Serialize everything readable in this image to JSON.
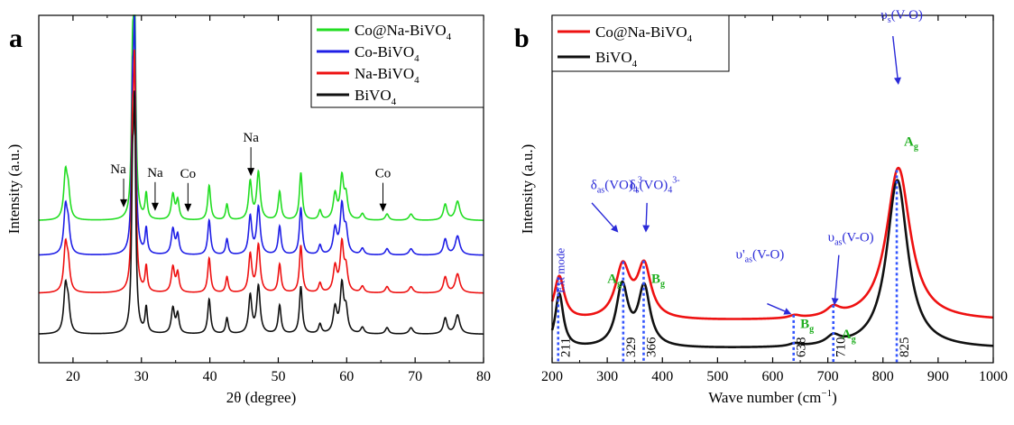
{
  "colors": {
    "green": "#22dd22",
    "blue": "#1f1fe6",
    "red": "#ee1111",
    "black": "#111111",
    "annot_blue": "#2a2ad8",
    "annot_green": "#1fae1f",
    "dotted": "#3355ff"
  },
  "chart_data": [
    {
      "type": "line",
      "panel_label": "a",
      "xlabel": "2θ (degree)",
      "ylabel": "Intensity (a.u.)",
      "xlim": [
        15,
        80
      ],
      "ylim": [
        0,
        11
      ],
      "xticks": [
        20,
        30,
        40,
        50,
        60,
        70,
        80
      ],
      "x_minor_step": 5,
      "grid": false,
      "legend": {
        "placement": "top-right",
        "entries": [
          "Co@Na-BiVO",
          "Co-BiVO",
          "Na-BiVO",
          "BiVO"
        ],
        "subscript": "4"
      },
      "series": [
        {
          "name": "Co@Na-BiVO",
          "legend_sub": "4",
          "color_key": "green",
          "baseline": 4.5,
          "peaks": [
            [
              18.9,
              1.4,
              0.3
            ],
            [
              19.3,
              0.8,
              0.3
            ],
            [
              28.7,
              4.0,
              0.18
            ],
            [
              29.0,
              6.7,
              0.2
            ],
            [
              30.7,
              0.8,
              0.2
            ],
            [
              34.6,
              0.8,
              0.28
            ],
            [
              35.3,
              0.6,
              0.25
            ],
            [
              39.9,
              1.1,
              0.25
            ],
            [
              42.5,
              0.5,
              0.22
            ],
            [
              45.9,
              1.2,
              0.28
            ],
            [
              47.1,
              1.5,
              0.3
            ],
            [
              50.2,
              0.9,
              0.25
            ],
            [
              53.3,
              1.5,
              0.25
            ],
            [
              56.1,
              0.3,
              0.25
            ],
            [
              58.3,
              0.8,
              0.32
            ],
            [
              59.3,
              1.3,
              0.3
            ],
            [
              59.9,
              0.7,
              0.3
            ],
            [
              62.3,
              0.2,
              0.3
            ],
            [
              65.9,
              0.2,
              0.3
            ],
            [
              69.4,
              0.2,
              0.35
            ],
            [
              74.4,
              0.5,
              0.32
            ],
            [
              76.2,
              0.6,
              0.4
            ]
          ],
          "data_labels": [
            {
              "text": "Na",
              "x": 27.4
            },
            {
              "text": "Na",
              "x": 32.0
            },
            {
              "text": "Co",
              "x": 36.8
            },
            {
              "text": "Na",
              "x": 46.0
            },
            {
              "text": "Co",
              "x": 65.3
            }
          ]
        },
        {
          "name": "Co-BiVO",
          "legend_sub": "4",
          "color_key": "blue",
          "baseline": 3.4,
          "peaks": [
            [
              18.9,
              1.4,
              0.3
            ],
            [
              19.3,
              0.8,
              0.3
            ],
            [
              28.7,
              4.0,
              0.18
            ],
            [
              29.0,
              6.6,
              0.2
            ],
            [
              30.7,
              0.8,
              0.2
            ],
            [
              34.6,
              0.8,
              0.28
            ],
            [
              35.3,
              0.6,
              0.25
            ],
            [
              39.9,
              1.1,
              0.25
            ],
            [
              42.5,
              0.5,
              0.22
            ],
            [
              45.9,
              1.2,
              0.28
            ],
            [
              47.1,
              1.5,
              0.3
            ],
            [
              50.2,
              0.9,
              0.25
            ],
            [
              53.3,
              1.5,
              0.25
            ],
            [
              56.1,
              0.3,
              0.25
            ],
            [
              58.3,
              0.8,
              0.32
            ],
            [
              59.3,
              1.5,
              0.3
            ],
            [
              59.9,
              0.7,
              0.3
            ],
            [
              62.3,
              0.2,
              0.3
            ],
            [
              65.9,
              0.2,
              0.3
            ],
            [
              69.4,
              0.2,
              0.35
            ],
            [
              74.4,
              0.5,
              0.32
            ],
            [
              76.2,
              0.6,
              0.4
            ]
          ]
        },
        {
          "name": "Na-BiVO",
          "legend_sub": "4",
          "color_key": "red",
          "baseline": 2.2,
          "peaks": [
            [
              18.9,
              1.4,
              0.3
            ],
            [
              19.3,
              0.8,
              0.3
            ],
            [
              28.7,
              4.0,
              0.18
            ],
            [
              29.0,
              6.6,
              0.2
            ],
            [
              30.7,
              0.8,
              0.2
            ],
            [
              34.6,
              0.8,
              0.28
            ],
            [
              35.3,
              0.6,
              0.25
            ],
            [
              39.9,
              1.1,
              0.25
            ],
            [
              42.5,
              0.5,
              0.22
            ],
            [
              45.9,
              1.2,
              0.28
            ],
            [
              47.1,
              1.5,
              0.3
            ],
            [
              50.2,
              0.9,
              0.25
            ],
            [
              53.3,
              1.5,
              0.25
            ],
            [
              56.1,
              0.3,
              0.25
            ],
            [
              58.3,
              0.8,
              0.32
            ],
            [
              59.3,
              1.5,
              0.3
            ],
            [
              59.9,
              0.7,
              0.3
            ],
            [
              62.3,
              0.2,
              0.3
            ],
            [
              65.9,
              0.2,
              0.3
            ],
            [
              69.4,
              0.2,
              0.35
            ],
            [
              74.4,
              0.5,
              0.32
            ],
            [
              76.2,
              0.6,
              0.4
            ]
          ]
        },
        {
          "name": "BiVO",
          "legend_sub": "4",
          "color_key": "black",
          "baseline": 0.9,
          "peaks": [
            [
              18.9,
              1.4,
              0.3
            ],
            [
              19.3,
              0.8,
              0.3
            ],
            [
              28.7,
              4.0,
              0.18
            ],
            [
              29.0,
              6.6,
              0.2
            ],
            [
              30.7,
              0.8,
              0.2
            ],
            [
              34.6,
              0.8,
              0.28
            ],
            [
              35.3,
              0.6,
              0.25
            ],
            [
              39.9,
              1.1,
              0.25
            ],
            [
              42.5,
              0.5,
              0.22
            ],
            [
              45.9,
              1.2,
              0.28
            ],
            [
              47.1,
              1.5,
              0.3
            ],
            [
              50.2,
              0.9,
              0.25
            ],
            [
              53.3,
              1.5,
              0.25
            ],
            [
              56.1,
              0.3,
              0.25
            ],
            [
              58.3,
              0.8,
              0.32
            ],
            [
              59.3,
              1.5,
              0.3
            ],
            [
              59.9,
              0.7,
              0.3
            ],
            [
              62.3,
              0.2,
              0.3
            ],
            [
              65.9,
              0.2,
              0.3
            ],
            [
              69.4,
              0.2,
              0.35
            ],
            [
              74.4,
              0.5,
              0.32
            ],
            [
              76.2,
              0.6,
              0.4
            ]
          ]
        }
      ]
    },
    {
      "type": "line",
      "panel_label": "b",
      "xlabel": "Wave number (cm",
      "xlabel_sup": "−1",
      "xlabel_end": ")",
      "ylabel": "Intensity (a.u.)",
      "xlim": [
        200,
        1000
      ],
      "ylim": [
        0,
        10
      ],
      "xticks": [
        200,
        300,
        400,
        500,
        600,
        700,
        800,
        900,
        1000
      ],
      "x_minor_step": 50,
      "grid": false,
      "legend": {
        "placement": "top-left",
        "entries": [
          "Co@Na-BiVO",
          "BiVO"
        ],
        "subscript": "4"
      },
      "series": [
        {
          "name": "Co@Na-BiVO",
          "legend_sub": "4",
          "color_key": "red",
          "baseline": 1.2,
          "peaks": [
            [
              213,
              1.25,
              11
            ],
            [
              328,
              1.5,
              16
            ],
            [
              367,
              1.5,
              15
            ],
            [
              640,
              0.08,
              12
            ],
            [
              710,
              0.25,
              15
            ],
            [
              828,
              4.4,
              26
            ]
          ]
        },
        {
          "name": "BiVO",
          "legend_sub": "4",
          "color_key": "black",
          "baseline": 0.4,
          "peaks": [
            [
              213,
              1.55,
              9
            ],
            [
              327,
              1.75,
              13
            ],
            [
              367,
              1.7,
              13
            ],
            [
              640,
              0.08,
              12
            ],
            [
              710,
              0.25,
              15
            ],
            [
              826,
              4.85,
              23
            ]
          ]
        }
      ],
      "dotted_lines": [
        {
          "x": 211,
          "label": "211"
        },
        {
          "x": 329,
          "label": "329"
        },
        {
          "x": 366,
          "label": "366"
        },
        {
          "x": 638,
          "label": "638"
        },
        {
          "x": 710,
          "label": "710"
        },
        {
          "x": 825,
          "label": "825"
        }
      ],
      "annotations": [
        {
          "text": "Ext mode",
          "x": 222,
          "y": 2.0,
          "color_key": "annot_blue",
          "rotate": true
        },
        {
          "text": "δ",
          "sub": "as",
          "mid": "(VO)",
          "sub2": "4",
          "sup": "3-",
          "x": 270,
          "y": 5.0,
          "color_key": "annot_blue"
        },
        {
          "text": "δ",
          "sub": "s",
          "mid": "(VO)",
          "sub2": "4",
          "sup": "3-",
          "x": 340,
          "y": 5.0,
          "color_key": "annot_blue"
        },
        {
          "text": "A",
          "sub": "g",
          "x": 300,
          "y": 2.3,
          "color_key": "annot_green",
          "bold": true
        },
        {
          "text": "B",
          "sub": "g",
          "x": 380,
          "y": 2.3,
          "color_key": "annot_green",
          "bold": true
        },
        {
          "text": "υ'",
          "sub": "as",
          "mid": "(V-O)",
          "x": 533,
          "y": 3.0,
          "color_key": "annot_blue"
        },
        {
          "text": "B",
          "sub": "g",
          "x": 650,
          "y": 1.0,
          "color_key": "annot_green",
          "bold": true
        },
        {
          "text": "υ",
          "sub": "as",
          "mid": "(V-O)",
          "x": 700,
          "y": 3.5,
          "color_key": "annot_blue"
        },
        {
          "text": "A",
          "sub": "g",
          "x": 725,
          "y": 0.7,
          "color_key": "annot_green",
          "bold": true
        },
        {
          "text": "υ",
          "sub": "s",
          "mid": "(V-O)",
          "x": 796,
          "y": 9.9,
          "color_key": "annot_blue"
        },
        {
          "text": "A",
          "sub": "g",
          "x": 838,
          "y": 6.25,
          "color_key": "annot_green",
          "bold": true
        }
      ],
      "arrows": [
        {
          "from": [
            272,
            4.6
          ],
          "to": [
            320,
            3.75
          ]
        },
        {
          "from": [
            372,
            4.6
          ],
          "to": [
            370,
            3.75
          ]
        },
        {
          "from": [
            590,
            1.7
          ],
          "to": [
            634,
            1.4
          ]
        },
        {
          "from": [
            720,
            3.1
          ],
          "to": [
            712,
            1.65
          ]
        },
        {
          "from": [
            818,
            9.4
          ],
          "to": [
            828,
            8.0
          ]
        }
      ]
    }
  ]
}
